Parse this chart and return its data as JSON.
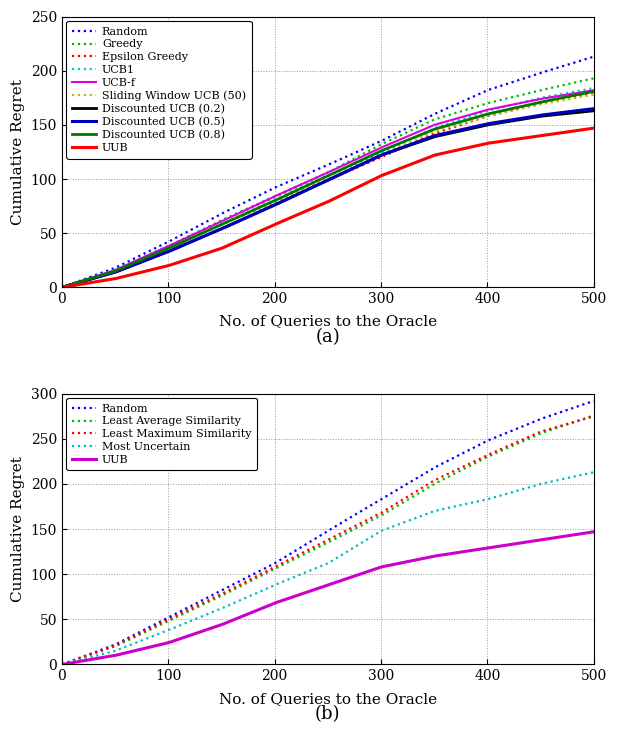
{
  "fig_width": 6.18,
  "fig_height": 7.32,
  "dpi": 100,
  "subplot_a": {
    "xlim": [
      0,
      500
    ],
    "ylim": [
      0,
      250
    ],
    "xlabel": "No. of Queries to the Oracle",
    "ylabel": "Cumulative Regret",
    "xticks": [
      0,
      100,
      200,
      300,
      400,
      500
    ],
    "yticks": [
      0,
      50,
      100,
      150,
      200,
      250
    ],
    "caption": "(a)",
    "series": [
      {
        "label": "Random",
        "color": "#0000FF",
        "linestyle": "dotted",
        "linewidth": 1.6,
        "points": [
          [
            0,
            0
          ],
          [
            50,
            18
          ],
          [
            100,
            42
          ],
          [
            150,
            68
          ],
          [
            200,
            92
          ],
          [
            250,
            113
          ],
          [
            300,
            135
          ],
          [
            350,
            160
          ],
          [
            400,
            182
          ],
          [
            450,
            198
          ],
          [
            500,
            213
          ]
        ]
      },
      {
        "label": "Greedy",
        "color": "#00BB00",
        "linestyle": "dotted",
        "linewidth": 1.6,
        "points": [
          [
            0,
            0
          ],
          [
            50,
            16
          ],
          [
            100,
            38
          ],
          [
            150,
            62
          ],
          [
            200,
            84
          ],
          [
            250,
            106
          ],
          [
            300,
            132
          ],
          [
            350,
            155
          ],
          [
            400,
            170
          ],
          [
            450,
            182
          ],
          [
            500,
            193
          ]
        ]
      },
      {
        "label": "Epsilon Greedy",
        "color": "#FF0000",
        "linestyle": "dotted",
        "linewidth": 1.6,
        "points": [
          [
            0,
            0
          ],
          [
            50,
            15
          ],
          [
            100,
            36
          ],
          [
            150,
            58
          ],
          [
            200,
            79
          ],
          [
            250,
            99
          ],
          [
            300,
            120
          ],
          [
            350,
            142
          ],
          [
            400,
            158
          ],
          [
            450,
            170
          ],
          [
            500,
            180
          ]
        ]
      },
      {
        "label": "UCB1",
        "color": "#00CCCC",
        "linestyle": "dotted",
        "linewidth": 1.6,
        "points": [
          [
            0,
            0
          ],
          [
            50,
            16
          ],
          [
            100,
            38
          ],
          [
            150,
            61
          ],
          [
            200,
            83
          ],
          [
            250,
            103
          ],
          [
            300,
            124
          ],
          [
            350,
            147
          ],
          [
            400,
            163
          ],
          [
            450,
            175
          ],
          [
            500,
            184
          ]
        ]
      },
      {
        "label": "UCB-f",
        "color": "#DD00DD",
        "linestyle": "solid",
        "linewidth": 1.5,
        "points": [
          [
            0,
            0
          ],
          [
            50,
            16
          ],
          [
            100,
            38
          ],
          [
            150,
            61
          ],
          [
            200,
            84
          ],
          [
            250,
            106
          ],
          [
            300,
            129
          ],
          [
            350,
            150
          ],
          [
            400,
            164
          ],
          [
            450,
            174
          ],
          [
            500,
            182
          ]
        ]
      },
      {
        "label": "Sliding Window UCB (50)",
        "color": "#BBBB00",
        "linestyle": "dotted",
        "linewidth": 1.6,
        "points": [
          [
            0,
            0
          ],
          [
            50,
            15
          ],
          [
            100,
            36
          ],
          [
            150,
            58
          ],
          [
            200,
            79
          ],
          [
            250,
            100
          ],
          [
            300,
            122
          ],
          [
            350,
            144
          ],
          [
            400,
            158
          ],
          [
            450,
            169
          ],
          [
            500,
            178
          ]
        ]
      },
      {
        "label": "Discounted UCB (0.2)",
        "color": "#000000",
        "linestyle": "solid",
        "linewidth": 2.0,
        "points": [
          [
            0,
            0
          ],
          [
            50,
            14
          ],
          [
            100,
            33
          ],
          [
            150,
            54
          ],
          [
            200,
            76
          ],
          [
            250,
            99
          ],
          [
            300,
            122
          ],
          [
            350,
            139
          ],
          [
            400,
            150
          ],
          [
            450,
            158
          ],
          [
            500,
            163
          ]
        ]
      },
      {
        "label": "Discounted UCB (0.5)",
        "color": "#0000BB",
        "linestyle": "solid",
        "linewidth": 2.2,
        "points": [
          [
            0,
            0
          ],
          [
            50,
            14
          ],
          [
            100,
            33
          ],
          [
            150,
            54
          ],
          [
            200,
            76
          ],
          [
            250,
            99
          ],
          [
            300,
            122
          ],
          [
            350,
            140
          ],
          [
            400,
            151
          ],
          [
            450,
            159
          ],
          [
            500,
            165
          ]
        ]
      },
      {
        "label": "Discounted UCB (0.8)",
        "color": "#007700",
        "linestyle": "solid",
        "linewidth": 2.0,
        "points": [
          [
            0,
            0
          ],
          [
            50,
            15
          ],
          [
            100,
            36
          ],
          [
            150,
            58
          ],
          [
            200,
            80
          ],
          [
            250,
            103
          ],
          [
            300,
            126
          ],
          [
            350,
            146
          ],
          [
            400,
            160
          ],
          [
            450,
            171
          ],
          [
            500,
            181
          ]
        ]
      },
      {
        "label": "UUB",
        "color": "#FF0000",
        "linestyle": "solid",
        "linewidth": 2.2,
        "points": [
          [
            0,
            0
          ],
          [
            50,
            8
          ],
          [
            100,
            20
          ],
          [
            150,
            36
          ],
          [
            200,
            58
          ],
          [
            250,
            79
          ],
          [
            300,
            103
          ],
          [
            350,
            122
          ],
          [
            400,
            133
          ],
          [
            450,
            140
          ],
          [
            500,
            147
          ]
        ]
      }
    ]
  },
  "subplot_b": {
    "xlim": [
      0,
      500
    ],
    "ylim": [
      0,
      300
    ],
    "xlabel": "No. of Queries to the Oracle",
    "ylabel": "Cumulative Regret",
    "xticks": [
      0,
      100,
      200,
      300,
      400,
      500
    ],
    "yticks": [
      0,
      50,
      100,
      150,
      200,
      250,
      300
    ],
    "caption": "(b)",
    "series": [
      {
        "label": "Random",
        "color": "#0000FF",
        "linestyle": "dotted",
        "linewidth": 1.6,
        "points": [
          [
            0,
            0
          ],
          [
            50,
            22
          ],
          [
            100,
            52
          ],
          [
            150,
            82
          ],
          [
            200,
            112
          ],
          [
            250,
            148
          ],
          [
            300,
            183
          ],
          [
            350,
            218
          ],
          [
            400,
            248
          ],
          [
            450,
            272
          ],
          [
            500,
            292
          ]
        ]
      },
      {
        "label": "Least Average Similarity",
        "color": "#00BB00",
        "linestyle": "dotted",
        "linewidth": 1.6,
        "points": [
          [
            0,
            0
          ],
          [
            50,
            20
          ],
          [
            100,
            48
          ],
          [
            150,
            76
          ],
          [
            200,
            106
          ],
          [
            250,
            135
          ],
          [
            300,
            165
          ],
          [
            350,
            200
          ],
          [
            400,
            230
          ],
          [
            450,
            256
          ],
          [
            500,
            276
          ]
        ]
      },
      {
        "label": "Least Maximum Similarity",
        "color": "#FF0000",
        "linestyle": "dotted",
        "linewidth": 1.6,
        "points": [
          [
            0,
            0
          ],
          [
            50,
            21
          ],
          [
            100,
            50
          ],
          [
            150,
            78
          ],
          [
            200,
            108
          ],
          [
            250,
            138
          ],
          [
            300,
            168
          ],
          [
            350,
            204
          ],
          [
            400,
            232
          ],
          [
            450,
            258
          ],
          [
            500,
            275
          ]
        ]
      },
      {
        "label": "Most Uncertain",
        "color": "#00BBBB",
        "linestyle": "dotted",
        "linewidth": 1.6,
        "points": [
          [
            0,
            0
          ],
          [
            50,
            15
          ],
          [
            100,
            38
          ],
          [
            150,
            62
          ],
          [
            200,
            88
          ],
          [
            250,
            112
          ],
          [
            300,
            148
          ],
          [
            350,
            170
          ],
          [
            400,
            183
          ],
          [
            450,
            200
          ],
          [
            500,
            213
          ]
        ]
      },
      {
        "label": "UUB",
        "color": "#CC00CC",
        "linestyle": "solid",
        "linewidth": 2.2,
        "points": [
          [
            0,
            0
          ],
          [
            50,
            10
          ],
          [
            100,
            24
          ],
          [
            150,
            44
          ],
          [
            200,
            68
          ],
          [
            250,
            88
          ],
          [
            300,
            108
          ],
          [
            350,
            120
          ],
          [
            400,
            129
          ],
          [
            450,
            138
          ],
          [
            500,
            147
          ]
        ]
      }
    ]
  }
}
